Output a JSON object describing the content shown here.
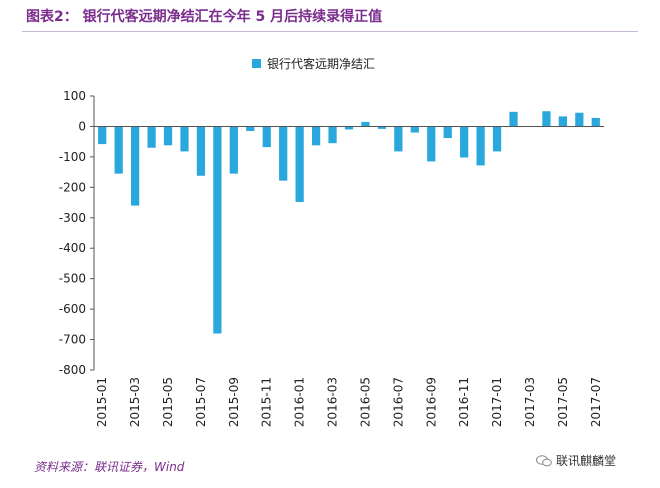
{
  "title": "图表2：  银行代客远期净结汇在今年 5 月后持续录得正值",
  "source": "资料来源：联讯证券，Wind",
  "watermark": "联讯麒麟堂",
  "colors": {
    "bar": "#2aa7dd",
    "title": "#7a2d8c",
    "axis": "#555555",
    "rule": "#c9b8d6"
  },
  "chart_data": {
    "type": "bar",
    "x": [
      "2015-01",
      "2015-02",
      "2015-03",
      "2015-04",
      "2015-05",
      "2015-06",
      "2015-07",
      "2015-08",
      "2015-09",
      "2015-10",
      "2015-11",
      "2015-12",
      "2016-01",
      "2016-02",
      "2016-03",
      "2016-04",
      "2016-05",
      "2016-06",
      "2016-07",
      "2016-08",
      "2016-09",
      "2016-10",
      "2016-11",
      "2016-12",
      "2017-01",
      "2017-02",
      "2017-03",
      "2017-04",
      "2017-05",
      "2017-06",
      "2017-07"
    ],
    "tick_labels": [
      "2015-01",
      "2015-03",
      "2015-05",
      "2015-07",
      "2015-09",
      "2015-11",
      "2016-01",
      "2016-03",
      "2016-05",
      "2016-07",
      "2016-09",
      "2016-11",
      "2017-01",
      "2017-03",
      "2017-05",
      "2017-07"
    ],
    "series": [
      {
        "name": "银行代客远期净结汇",
        "values": [
          -58,
          -155,
          -260,
          -70,
          -62,
          -82,
          -162,
          -680,
          -155,
          -15,
          -68,
          -178,
          -248,
          -62,
          -55,
          -10,
          15,
          -8,
          -82,
          -20,
          -115,
          -38,
          -102,
          -128,
          -82,
          48,
          0,
          50,
          33,
          45,
          28
        ]
      }
    ],
    "ylim": [
      -800,
      100
    ],
    "yticks": [
      100,
      0,
      -100,
      -200,
      -300,
      -400,
      -500,
      -600,
      -700,
      -800
    ],
    "legend": "top-center",
    "grid": false
  }
}
